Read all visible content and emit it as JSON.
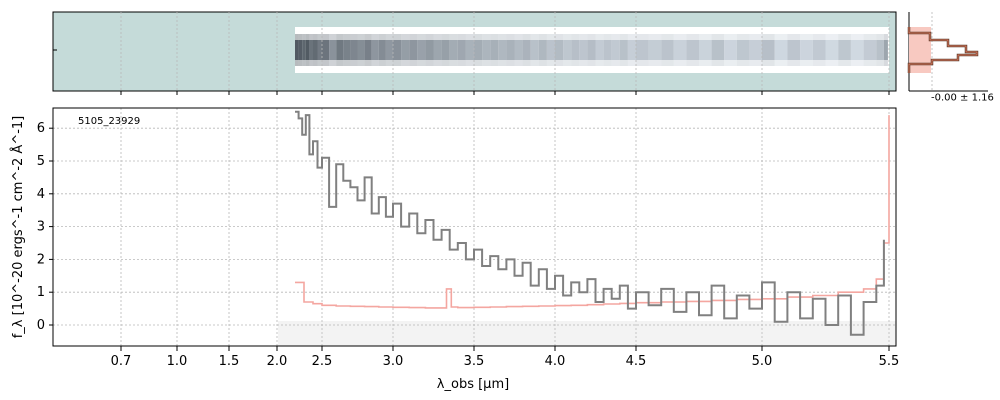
{
  "chart_data": {
    "type": "line",
    "object_id": "5105_23929",
    "xlabel": "λ_obs [μm]",
    "ylabel": "f_λ [10^-20 ergs^-1 cm^-2 Å^-1]",
    "x_ticks": [
      "0.7",
      "1.0",
      "1.5",
      "2.0",
      "2.5",
      "3.0",
      "3.5",
      "4.0",
      "4.5",
      "5.0",
      "5.5"
    ],
    "x_tick_values": [
      0.7,
      1.0,
      1.5,
      2.0,
      2.5,
      3.0,
      3.5,
      4.0,
      4.5,
      5.0,
      5.5
    ],
    "y_ticks": [
      "0",
      "1",
      "2",
      "3",
      "4",
      "5",
      "6"
    ],
    "y_tick_values": [
      0,
      1,
      2,
      3,
      4,
      5,
      6
    ],
    "ylim": [
      -0.65,
      6.6
    ],
    "grid": true,
    "hist_label": "-0.00 ± 1.16",
    "series": [
      {
        "color": "#808080",
        "x": [
          2.2,
          2.24,
          2.28,
          2.32,
          2.36,
          2.4,
          2.45,
          2.5,
          2.55,
          2.6,
          2.65,
          2.7,
          2.75,
          2.8,
          2.85,
          2.9,
          2.95,
          3.0,
          3.05,
          3.1,
          3.15,
          3.2,
          3.25,
          3.3,
          3.35,
          3.4,
          3.45,
          3.5,
          3.55,
          3.6,
          3.65,
          3.7,
          3.75,
          3.8,
          3.85,
          3.9,
          3.95,
          4.0,
          4.05,
          4.1,
          4.15,
          4.2,
          4.25,
          4.3,
          4.35,
          4.4,
          4.45,
          4.5,
          4.55,
          4.6,
          4.65,
          4.7,
          4.75,
          4.8,
          4.85,
          4.9,
          4.95,
          5.0,
          5.05,
          5.1,
          5.15,
          5.2,
          5.25,
          5.3,
          5.35,
          5.4,
          5.45,
          5.48
        ],
        "y": [
          6.5,
          6.3,
          5.8,
          6.4,
          5.2,
          5.6,
          4.8,
          5.1,
          3.6,
          4.9,
          4.4,
          4.2,
          3.8,
          4.5,
          3.4,
          3.9,
          3.3,
          3.7,
          3.0,
          3.4,
          2.8,
          3.2,
          2.6,
          2.9,
          2.3,
          2.5,
          2.0,
          2.3,
          1.8,
          2.1,
          1.7,
          2.0,
          1.5,
          1.9,
          1.2,
          1.7,
          1.1,
          1.5,
          0.9,
          1.3,
          1.0,
          1.4,
          0.7,
          1.1,
          0.8,
          1.2,
          0.5,
          1.0,
          0.6,
          1.1,
          0.4,
          1.0,
          0.3,
          1.2,
          0.2,
          0.9,
          0.5,
          1.3,
          0.1,
          1.0,
          0.2,
          0.8,
          0.0,
          0.9,
          -0.3,
          0.7,
          1.2,
          2.6
        ]
      },
      {
        "color": "#f4a6a0",
        "x": [
          2.2,
          2.3,
          2.4,
          2.5,
          2.6,
          2.7,
          2.8,
          2.9,
          3.0,
          3.1,
          3.2,
          3.3,
          3.33,
          3.36,
          3.4,
          3.5,
          3.6,
          3.7,
          3.8,
          3.9,
          4.0,
          4.1,
          4.2,
          4.3,
          4.4,
          4.5,
          4.6,
          4.7,
          4.8,
          4.9,
          5.0,
          5.1,
          5.2,
          5.3,
          5.4,
          5.45,
          5.48,
          5.5
        ],
        "y": [
          1.3,
          0.7,
          0.65,
          0.6,
          0.58,
          0.57,
          0.56,
          0.55,
          0.54,
          0.53,
          0.52,
          0.52,
          1.1,
          0.55,
          0.53,
          0.54,
          0.55,
          0.56,
          0.57,
          0.58,
          0.59,
          0.6,
          0.62,
          0.64,
          0.66,
          0.68,
          0.7,
          0.72,
          0.75,
          0.78,
          0.8,
          0.85,
          0.9,
          1.0,
          1.1,
          1.4,
          2.5,
          6.4
        ]
      }
    ]
  }
}
